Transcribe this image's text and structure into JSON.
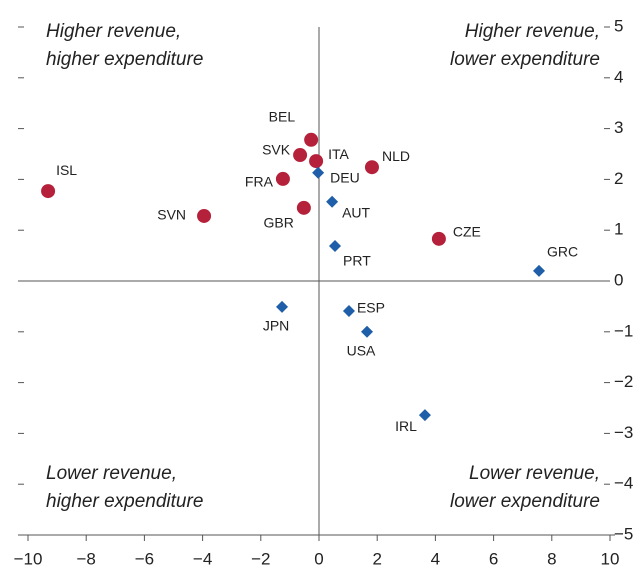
{
  "chart_data": {
    "type": "scatter",
    "annotations": [
      "Higher revenue,",
      "higher expenditure",
      "Higher revenue,",
      "lower expenditure",
      "Lower revenue,",
      "higher expenditure",
      "Lower revenue,",
      "lower expenditure"
    ],
    "series": [
      {
        "color": "#b5213a",
        "marker": "circle",
        "labels": [
          "ISL",
          "SVN",
          "FRA",
          "GBR",
          "SVK",
          "BEL",
          "ITA",
          "NLD",
          "CZE"
        ],
        "x": [
          -9.31,
          -3.95,
          -1.24,
          -0.52,
          -0.65,
          -0.27,
          -0.1,
          1.82,
          4.12
        ],
        "values": [
          1.77,
          1.28,
          2.01,
          1.44,
          2.48,
          2.78,
          2.36,
          2.24,
          0.83
        ]
      },
      {
        "color": "#1f5ea8",
        "marker": "diamond",
        "labels": [
          "DEU",
          "AUT",
          "PRT",
          "GRC",
          "JPN",
          "ESP",
          "USA",
          "IRL"
        ],
        "x": [
          -0.03,
          0.45,
          0.55,
          7.56,
          -1.27,
          1.03,
          1.65,
          3.64
        ],
        "values": [
          2.13,
          1.56,
          0.69,
          0.2,
          -0.51,
          -0.59,
          -1.0,
          -2.64
        ]
      }
    ],
    "xlim": [
      -10,
      10
    ],
    "xticks": [
      {
        "value": -10,
        "label": "−10"
      },
      {
        "value": -8,
        "label": "−8"
      },
      {
        "value": -6,
        "label": "−6"
      },
      {
        "value": -4,
        "label": "−4"
      },
      {
        "value": -2,
        "label": "−2"
      },
      0,
      2,
      4,
      6,
      8,
      10
    ],
    "ylim": [
      -5,
      5
    ],
    "yticks": [
      {
        "value": -5,
        "label": "−5"
      },
      {
        "value": -4,
        "label": "−4"
      },
      {
        "value": -3,
        "label": "−3"
      },
      {
        "value": -2,
        "label": "−2"
      },
      {
        "value": -1,
        "label": "−1"
      },
      0,
      1,
      2,
      3,
      4,
      5
    ]
  }
}
